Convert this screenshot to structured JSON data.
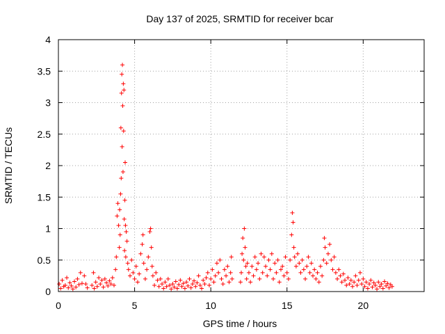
{
  "chart_data": {
    "type": "scatter",
    "title": "Day 137 of 2025, SRMTID for receiver bcar",
    "xlabel": "GPS time / hours",
    "ylabel": "SRMTID / TECUs",
    "xlim": [
      0,
      24
    ],
    "ylim": [
      0,
      4
    ],
    "xticks": [
      0,
      5,
      10,
      15,
      20
    ],
    "xtick_labels": [
      "0",
      "5",
      "10",
      "15",
      "20"
    ],
    "yticks": [
      0,
      0.5,
      1,
      1.5,
      2,
      2.5,
      3,
      3.5,
      4
    ],
    "ytick_labels": [
      "0",
      "0.5",
      "1",
      "1.5",
      "2",
      "2.5",
      "3",
      "3.5",
      "4"
    ],
    "grid": true,
    "marker": "+",
    "color": "#ff0000",
    "series": [
      {
        "name": "SRMTID",
        "points": [
          [
            0.05,
            0.12
          ],
          [
            0.15,
            0.05
          ],
          [
            0.25,
            0.18
          ],
          [
            0.35,
            0.08
          ],
          [
            0.45,
            0.1
          ],
          [
            0.55,
            0.22
          ],
          [
            0.65,
            0.06
          ],
          [
            0.75,
            0.14
          ],
          [
            0.85,
            0.09
          ],
          [
            0.95,
            0.04
          ],
          [
            1.05,
            0.16
          ],
          [
            1.15,
            0.07
          ],
          [
            1.25,
            0.2
          ],
          [
            1.35,
            0.11
          ],
          [
            1.45,
            0.3
          ],
          [
            1.55,
            0.13
          ],
          [
            1.7,
            0.25
          ],
          [
            1.8,
            0.12
          ],
          [
            1.9,
            0.06
          ],
          [
            2.2,
            0.1
          ],
          [
            2.3,
            0.3
          ],
          [
            2.35,
            0.05
          ],
          [
            2.45,
            0.15
          ],
          [
            2.55,
            0.08
          ],
          [
            2.65,
            0.22
          ],
          [
            2.75,
            0.12
          ],
          [
            2.85,
            0.18
          ],
          [
            2.95,
            0.07
          ],
          [
            3.05,
            0.2
          ],
          [
            3.15,
            0.14
          ],
          [
            3.25,
            0.09
          ],
          [
            3.35,
            0.17
          ],
          [
            3.45,
            0.12
          ],
          [
            3.55,
            0.22
          ],
          [
            3.65,
            0.1
          ],
          [
            3.75,
            0.35
          ],
          [
            3.8,
            0.55
          ],
          [
            3.85,
            1.2
          ],
          [
            3.9,
            1.4
          ],
          [
            3.95,
            1.05
          ],
          [
            4.0,
            0.7
          ],
          [
            4.02,
            1.3
          ],
          [
            4.05,
            0.9
          ],
          [
            4.08,
            1.55
          ],
          [
            4.1,
            2.6
          ],
          [
            4.12,
            1.8
          ],
          [
            4.14,
            3.15
          ],
          [
            4.16,
            3.45
          ],
          [
            4.18,
            2.3
          ],
          [
            4.2,
            3.6
          ],
          [
            4.22,
            2.95
          ],
          [
            4.24,
            1.9
          ],
          [
            4.26,
            3.3
          ],
          [
            4.28,
            2.55
          ],
          [
            4.3,
            3.2
          ],
          [
            4.32,
            1.15
          ],
          [
            4.34,
            0.65
          ],
          [
            4.36,
            1.45
          ],
          [
            4.38,
            2.05
          ],
          [
            4.4,
            1.05
          ],
          [
            4.42,
            0.55
          ],
          [
            4.45,
            0.95
          ],
          [
            4.5,
            0.8
          ],
          [
            4.55,
            0.45
          ],
          [
            4.6,
            0.35
          ],
          [
            4.7,
            0.25
          ],
          [
            4.8,
            0.5
          ],
          [
            4.9,
            0.3
          ],
          [
            5.0,
            0.2
          ],
          [
            5.1,
            0.4
          ],
          [
            5.2,
            0.15
          ],
          [
            5.3,
            0.28
          ],
          [
            5.4,
            0.6
          ],
          [
            5.5,
            0.75
          ],
          [
            5.55,
            0.9
          ],
          [
            5.6,
            0.45
          ],
          [
            5.7,
            0.2
          ],
          [
            5.8,
            0.35
          ],
          [
            5.9,
            0.55
          ],
          [
            6.0,
            0.95
          ],
          [
            6.05,
            1.0
          ],
          [
            6.1,
            0.7
          ],
          [
            6.15,
            0.4
          ],
          [
            6.2,
            0.25
          ],
          [
            6.3,
            0.1
          ],
          [
            6.4,
            0.3
          ],
          [
            6.5,
            0.18
          ],
          [
            6.6,
            0.08
          ],
          [
            6.7,
            0.2
          ],
          [
            6.8,
            0.12
          ],
          [
            6.9,
            0.05
          ],
          [
            7.0,
            0.15
          ],
          [
            7.1,
            0.08
          ],
          [
            7.2,
            0.2
          ],
          [
            7.3,
            0.1
          ],
          [
            7.4,
            0.04
          ],
          [
            7.5,
            0.12
          ],
          [
            7.6,
            0.07
          ],
          [
            7.7,
            0.16
          ],
          [
            7.8,
            0.05
          ],
          [
            7.9,
            0.11
          ],
          [
            8.0,
            0.18
          ],
          [
            8.1,
            0.08
          ],
          [
            8.2,
            0.13
          ],
          [
            8.3,
            0.05
          ],
          [
            8.4,
            0.15
          ],
          [
            8.5,
            0.09
          ],
          [
            8.6,
            0.2
          ],
          [
            8.7,
            0.06
          ],
          [
            8.8,
            0.12
          ],
          [
            8.9,
            0.17
          ],
          [
            9.0,
            0.08
          ],
          [
            9.1,
            0.14
          ],
          [
            9.2,
            0.25
          ],
          [
            9.3,
            0.1
          ],
          [
            9.4,
            0.05
          ],
          [
            9.5,
            0.18
          ],
          [
            9.6,
            0.12
          ],
          [
            9.7,
            0.22
          ],
          [
            9.8,
            0.3
          ],
          [
            9.9,
            0.1
          ],
          [
            10.0,
            0.2
          ],
          [
            10.1,
            0.35
          ],
          [
            10.2,
            0.15
          ],
          [
            10.3,
            0.25
          ],
          [
            10.4,
            0.45
          ],
          [
            10.5,
            0.3
          ],
          [
            10.6,
            0.5
          ],
          [
            10.7,
            0.2
          ],
          [
            10.8,
            0.12
          ],
          [
            10.9,
            0.35
          ],
          [
            11.0,
            0.25
          ],
          [
            11.1,
            0.4
          ],
          [
            11.2,
            0.15
          ],
          [
            11.3,
            0.3
          ],
          [
            11.35,
            0.55
          ],
          [
            11.4,
            0.2
          ],
          [
            11.95,
            0.15
          ],
          [
            12.0,
            0.3
          ],
          [
            12.05,
            0.6
          ],
          [
            12.1,
            0.85
          ],
          [
            12.15,
            0.5
          ],
          [
            12.2,
            1.0
          ],
          [
            12.25,
            0.7
          ],
          [
            12.3,
            0.4
          ],
          [
            12.35,
            0.2
          ],
          [
            12.4,
            0.45
          ],
          [
            12.5,
            0.3
          ],
          [
            12.6,
            0.15
          ],
          [
            12.7,
            0.4
          ],
          [
            12.8,
            0.25
          ],
          [
            12.9,
            0.55
          ],
          [
            13.0,
            0.35
          ],
          [
            13.1,
            0.45
          ],
          [
            13.2,
            0.2
          ],
          [
            13.3,
            0.6
          ],
          [
            13.4,
            0.3
          ],
          [
            13.5,
            0.55
          ],
          [
            13.6,
            0.4
          ],
          [
            13.7,
            0.25
          ],
          [
            13.8,
            0.5
          ],
          [
            13.9,
            0.35
          ],
          [
            14.0,
            0.6
          ],
          [
            14.1,
            0.2
          ],
          [
            14.2,
            0.45
          ],
          [
            14.3,
            0.3
          ],
          [
            14.4,
            0.5
          ],
          [
            14.5,
            0.15
          ],
          [
            14.6,
            0.35
          ],
          [
            14.7,
            0.4
          ],
          [
            14.8,
            0.25
          ],
          [
            14.9,
            0.55
          ],
          [
            15.0,
            0.3
          ],
          [
            15.1,
            0.2
          ],
          [
            15.2,
            0.5
          ],
          [
            15.3,
            0.9
          ],
          [
            15.35,
            1.25
          ],
          [
            15.4,
            1.1
          ],
          [
            15.45,
            0.7
          ],
          [
            15.5,
            0.55
          ],
          [
            15.6,
            0.4
          ],
          [
            15.7,
            0.6
          ],
          [
            15.8,
            0.45
          ],
          [
            15.9,
            0.3
          ],
          [
            16.0,
            0.5
          ],
          [
            16.1,
            0.35
          ],
          [
            16.2,
            0.2
          ],
          [
            16.3,
            0.4
          ],
          [
            16.4,
            0.55
          ],
          [
            16.5,
            0.3
          ],
          [
            16.6,
            0.45
          ],
          [
            16.7,
            0.25
          ],
          [
            16.8,
            0.35
          ],
          [
            16.9,
            0.2
          ],
          [
            17.0,
            0.3
          ],
          [
            17.1,
            0.15
          ],
          [
            17.2,
            0.4
          ],
          [
            17.3,
            0.25
          ],
          [
            17.4,
            0.5
          ],
          [
            17.45,
            0.85
          ],
          [
            17.5,
            0.7
          ],
          [
            17.6,
            0.45
          ],
          [
            17.7,
            0.6
          ],
          [
            17.8,
            0.75
          ],
          [
            17.9,
            0.5
          ],
          [
            18.0,
            0.35
          ],
          [
            18.1,
            0.55
          ],
          [
            18.2,
            0.3
          ],
          [
            18.3,
            0.2
          ],
          [
            18.4,
            0.35
          ],
          [
            18.5,
            0.25
          ],
          [
            18.6,
            0.15
          ],
          [
            18.7,
            0.28
          ],
          [
            18.8,
            0.18
          ],
          [
            18.9,
            0.1
          ],
          [
            19.0,
            0.22
          ],
          [
            19.1,
            0.12
          ],
          [
            19.2,
            0.18
          ],
          [
            19.3,
            0.08
          ],
          [
            19.4,
            0.15
          ],
          [
            19.5,
            0.25
          ],
          [
            19.6,
            0.1
          ],
          [
            19.7,
            0.18
          ],
          [
            19.8,
            0.3
          ],
          [
            19.9,
            0.12
          ],
          [
            20.0,
            0.2
          ],
          [
            20.1,
            0.08
          ],
          [
            20.2,
            0.15
          ],
          [
            20.3,
            0.05
          ],
          [
            20.4,
            0.12
          ],
          [
            20.5,
            0.18
          ],
          [
            20.6,
            0.07
          ],
          [
            20.7,
            0.14
          ],
          [
            20.8,
            0.1
          ],
          [
            20.9,
            0.04
          ],
          [
            21.0,
            0.15
          ],
          [
            21.1,
            0.08
          ],
          [
            21.2,
            0.12
          ],
          [
            21.3,
            0.05
          ],
          [
            21.4,
            0.16
          ],
          [
            21.5,
            0.09
          ],
          [
            21.6,
            0.13
          ],
          [
            21.7,
            0.06
          ],
          [
            21.8,
            0.11
          ],
          [
            21.9,
            0.08
          ]
        ]
      }
    ]
  }
}
